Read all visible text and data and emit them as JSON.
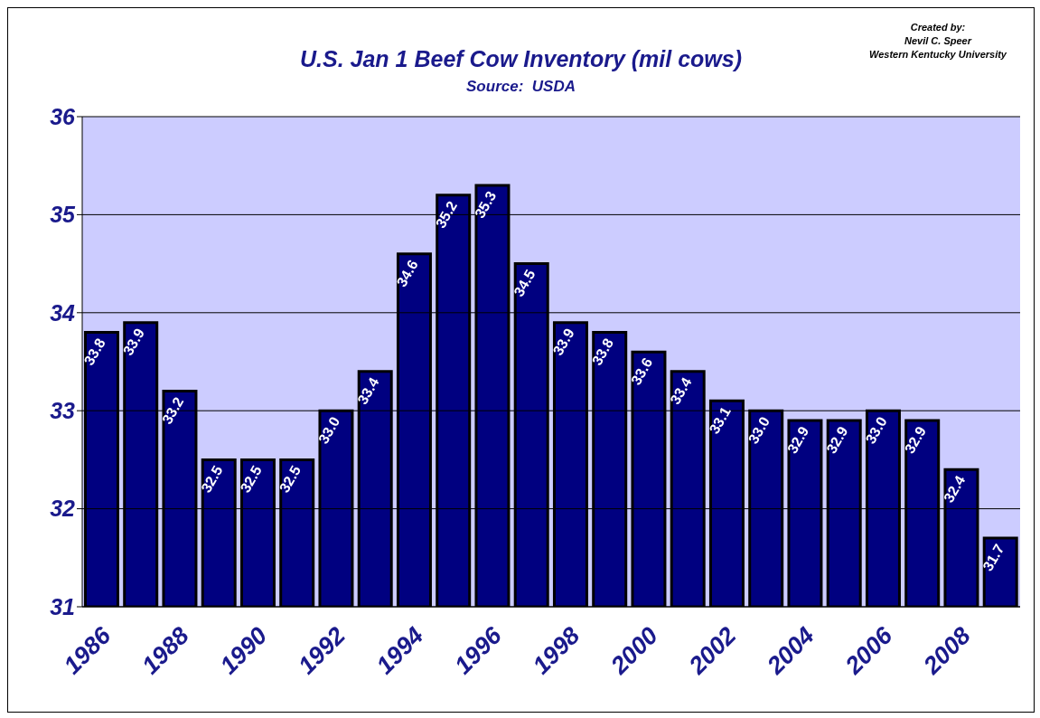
{
  "chart_data": {
    "type": "bar",
    "title": "U.S. Jan 1 Beef Cow Inventory (mil cows)",
    "subtitle": "Source:  USDA",
    "annotations": [
      "Created by:",
      "Nevil C. Speer",
      "Western Kentucky University"
    ],
    "categories": [
      "1986",
      null,
      "1988",
      null,
      "1990",
      null,
      "1992",
      null,
      "1994",
      null,
      "1996",
      null,
      "1998",
      null,
      "2000",
      null,
      "2002",
      null,
      "2004",
      null,
      "2006",
      null,
      "2008",
      null
    ],
    "values": [
      33.8,
      33.9,
      33.2,
      32.5,
      32.5,
      32.5,
      33.0,
      33.4,
      34.6,
      35.2,
      35.3,
      34.5,
      33.9,
      33.8,
      33.6,
      33.4,
      33.1,
      33.0,
      32.9,
      32.9,
      33.0,
      32.9,
      32.4,
      31.7
    ],
    "value_labels": [
      "33.8",
      "33.9",
      "33.2",
      "32.5",
      "32.5",
      "32.5",
      "33.0",
      "33.4",
      "34.6",
      "35.2",
      "35.3",
      "34.5",
      "33.9",
      "33.8",
      "33.6",
      "33.4",
      "33.1",
      "33.0",
      "32.9",
      "32.9",
      "33.0",
      "32.9",
      "32.4",
      "31.7"
    ],
    "color": "#000080",
    "ylim": [
      31,
      36
    ],
    "yticks": [
      31,
      32,
      33,
      34,
      35,
      36
    ],
    "grid": "y"
  }
}
